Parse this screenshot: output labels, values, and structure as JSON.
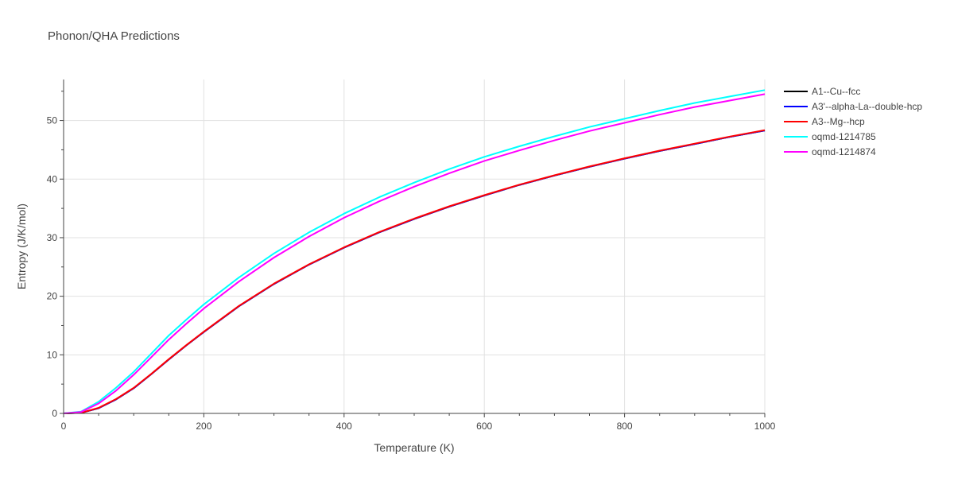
{
  "chart_data": {
    "type": "line",
    "title": "Phonon/QHA Predictions",
    "xlabel": "Temperature (K)",
    "ylabel": "Entropy (J/K/mol)",
    "xlim": [
      0,
      1000
    ],
    "ylim": [
      0,
      57
    ],
    "x_ticks": [
      0,
      200,
      400,
      600,
      800,
      1000
    ],
    "y_ticks": [
      0,
      10,
      20,
      30,
      40,
      50
    ],
    "grid": true,
    "legend_position": "top-right",
    "x": [
      0,
      25,
      50,
      75,
      100,
      125,
      150,
      175,
      200,
      250,
      300,
      350,
      400,
      450,
      500,
      550,
      600,
      650,
      700,
      750,
      800,
      850,
      900,
      950,
      1000
    ],
    "series": [
      {
        "name": "A1--Cu--fcc",
        "color": "#000000",
        "values": [
          0,
          0.1,
          0.9,
          2.4,
          4.3,
          6.7,
          9.2,
          11.6,
          13.9,
          18.3,
          22.1,
          25.4,
          28.3,
          30.9,
          33.2,
          35.3,
          37.2,
          39.0,
          40.6,
          42.1,
          43.5,
          44.8,
          46.0,
          47.2,
          48.3
        ]
      },
      {
        "name": "A3'--alpha-La--double-hcp",
        "color": "#0000ff",
        "values": [
          0,
          0.1,
          0.9,
          2.4,
          4.3,
          6.7,
          9.2,
          11.6,
          13.9,
          18.3,
          22.1,
          25.4,
          28.3,
          30.9,
          33.2,
          35.3,
          37.2,
          39.0,
          40.6,
          42.1,
          43.5,
          44.8,
          46.0,
          47.2,
          48.3
        ]
      },
      {
        "name": "A3--Mg--hcp",
        "color": "#ff0000",
        "values": [
          0,
          0.1,
          0.95,
          2.45,
          4.35,
          6.75,
          9.25,
          11.65,
          13.95,
          18.35,
          22.15,
          25.45,
          28.35,
          30.95,
          33.25,
          35.35,
          37.25,
          39.05,
          40.65,
          42.15,
          43.55,
          44.85,
          46.05,
          47.25,
          48.35
        ]
      },
      {
        "name": "oqmd-1214785",
        "color": "#00ffff",
        "values": [
          0,
          0.3,
          2.0,
          4.4,
          7.1,
          10.2,
          13.3,
          16.0,
          18.6,
          23.2,
          27.3,
          30.9,
          34.1,
          36.9,
          39.4,
          41.7,
          43.8,
          45.6,
          47.3,
          48.9,
          50.3,
          51.7,
          53.0,
          54.1,
          55.2
        ]
      },
      {
        "name": "oqmd-1214874",
        "color": "#ff00ff",
        "values": [
          0,
          0.25,
          1.7,
          3.9,
          6.6,
          9.6,
          12.6,
          15.3,
          17.9,
          22.5,
          26.6,
          30.2,
          33.4,
          36.2,
          38.7,
          41.0,
          43.1,
          44.9,
          46.6,
          48.2,
          49.6,
          51.0,
          52.3,
          53.4,
          54.5
        ]
      }
    ]
  }
}
